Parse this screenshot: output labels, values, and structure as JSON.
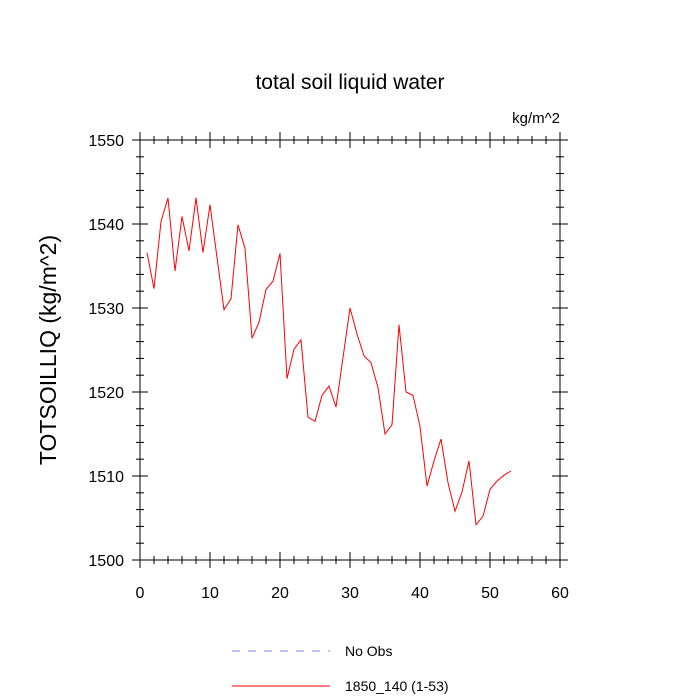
{
  "chart_data": {
    "type": "line",
    "title": "total soil liquid water",
    "units_label": "kg/m^2",
    "xlabel": "",
    "ylabel": "TOTSOILLIQ  (kg/m^2)",
    "xlim": [
      0,
      60
    ],
    "ylim": [
      1500,
      1550
    ],
    "x_ticks": [
      0,
      10,
      20,
      30,
      40,
      50,
      60
    ],
    "y_ticks": [
      1500,
      1510,
      1520,
      1530,
      1540,
      1550
    ],
    "grid": false,
    "legend_position": "bottom",
    "legend": [
      {
        "label": "No Obs",
        "color": "#8080ff",
        "style": "dashed"
      },
      {
        "label": "1850_140 (1-53)",
        "color": "#ff0000",
        "style": "solid"
      }
    ],
    "series": [
      {
        "color": "#ff0000",
        "x": [
          1,
          2,
          3,
          4,
          5,
          6,
          7,
          8,
          9,
          10,
          11,
          12,
          13,
          14,
          15,
          16,
          17,
          18,
          19,
          20,
          21,
          22,
          23,
          24,
          25,
          26,
          27,
          28,
          29,
          30,
          31,
          32,
          33,
          34,
          35,
          36,
          37,
          38,
          39,
          40,
          41,
          42,
          43,
          44,
          45,
          46,
          47,
          48,
          49,
          50,
          51,
          52,
          53
        ],
        "y": [
          1536.6,
          1532.3,
          1540.3,
          1543.1,
          1534.4,
          1540.9,
          1536.8,
          1543.1,
          1536.6,
          1542.3,
          1536.0,
          1529.8,
          1531.1,
          1539.9,
          1537.1,
          1526.4,
          1528.3,
          1532.2,
          1533.2,
          1536.5,
          1521.6,
          1525.1,
          1526.2,
          1517.0,
          1516.5,
          1519.6,
          1520.7,
          1518.2,
          1524.1,
          1530.0,
          1526.9,
          1524.3,
          1523.5,
          1520.5,
          1515.0,
          1516.1,
          1528.0,
          1520.0,
          1519.6,
          1515.9,
          1508.8,
          1511.8,
          1514.4,
          1509.2,
          1505.8,
          1508.1,
          1511.8,
          1504.2,
          1505.2,
          1508.4,
          1509.4,
          1510.1,
          1510.6
        ]
      }
    ]
  }
}
